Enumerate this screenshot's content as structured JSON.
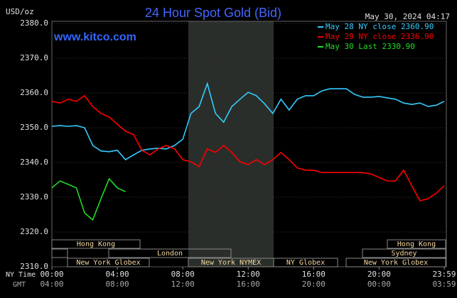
{
  "chart_data": {
    "type": "line",
    "title": "24 Hour Spot Gold (Bid)",
    "annotation": "www.kitco.com",
    "timestamp": "May 30, 2024 04:17",
    "y_label": "USD/oz",
    "x_label": "NY Time",
    "x2_label": "GMT",
    "x": [
      0,
      0.5,
      1,
      1.5,
      2,
      2.5,
      3,
      3.5,
      4,
      4.5,
      5,
      5.5,
      6,
      6.5,
      7,
      7.5,
      8,
      8.5,
      9,
      9.5,
      10,
      10.5,
      11,
      11.5,
      12,
      12.5,
      13,
      13.5,
      14,
      14.5,
      15,
      15.5,
      16,
      16.5,
      17,
      17.5,
      18,
      18.5,
      19,
      19.5,
      20,
      20.5,
      21,
      21.5,
      22,
      22.5,
      23,
      23.5,
      23.98
    ],
    "xlim": [
      0,
      23.98
    ],
    "xticks": [
      {
        "value": 0,
        "label": "00:00"
      },
      {
        "value": 4,
        "label": "04:00"
      },
      {
        "value": 8,
        "label": "08:00"
      },
      {
        "value": 12,
        "label": "12:00"
      },
      {
        "value": 16,
        "label": "16:00"
      },
      {
        "value": 20,
        "label": "20:00"
      },
      {
        "value": 23.98,
        "label": "23:59"
      }
    ],
    "x2tick_labels": [
      "04:00",
      "08:00",
      "12:00",
      "16:00",
      "20:00",
      "00:00",
      "03:59"
    ],
    "ylim": [
      2310,
      2380
    ],
    "yticks": [
      {
        "value": 2310,
        "label": "2310.0"
      },
      {
        "value": 2320,
        "label": "2320.0"
      },
      {
        "value": 2330,
        "label": "2330.0"
      },
      {
        "value": 2340,
        "label": "2340.0"
      },
      {
        "value": 2350,
        "label": "2350.0"
      },
      {
        "value": 2360,
        "label": "2360.0"
      },
      {
        "value": 2370,
        "label": "2370.0"
      },
      {
        "value": 2380,
        "label": "2380.0"
      }
    ],
    "grid": true,
    "legend": "top-right",
    "sessions": [
      "Hong Kong",
      "Hong Kong",
      "London",
      "Sydney",
      "New York Globex",
      "New York NYMEX",
      "NY Globex",
      "New York Globex"
    ],
    "series": [
      {
        "name": "May 28 NY close 2360.90",
        "color": "#33ccff",
        "values": [
          2350.4,
          2350.6,
          2350.4,
          2350.6,
          2350.0,
          2344.9,
          2343.3,
          2343.1,
          2343.5,
          2340.8,
          2342.2,
          2343.5,
          2343.9,
          2344.1,
          2343.9,
          2344.9,
          2346.7,
          2354.1,
          2356.1,
          2362.7,
          2354.1,
          2351.6,
          2356.1,
          2358.2,
          2360.2,
          2359.2,
          2356.9,
          2354.1,
          2358.2,
          2355.1,
          2358.2,
          2359.2,
          2359.2,
          2360.6,
          2361.2,
          2361.2,
          2361.2,
          2359.6,
          2358.8,
          2358.8,
          2359.0,
          2358.6,
          2358.2,
          2357.1,
          2356.7,
          2357.1,
          2356.1,
          2356.5,
          2357.6
        ]
      },
      {
        "name": "May 29 NY close 2336.90",
        "color": "#ff0000",
        "values": [
          2357.6,
          2357.1,
          2358.2,
          2357.6,
          2359.2,
          2356.1,
          2354.1,
          2353.1,
          2351.0,
          2349.0,
          2348.0,
          2343.5,
          2342.2,
          2343.9,
          2344.9,
          2343.9,
          2340.8,
          2340.2,
          2338.8,
          2343.9,
          2342.9,
          2344.9,
          2342.9,
          2340.2,
          2339.4,
          2340.8,
          2339.4,
          2340.8,
          2342.9,
          2340.8,
          2338.4,
          2337.8,
          2337.8,
          2337.1,
          2337.1,
          2337.1,
          2337.1,
          2337.1,
          2337.1,
          2336.7,
          2335.7,
          2334.7,
          2334.7,
          2337.8,
          2333.3,
          2329.0,
          2329.6,
          2331.2,
          2333.3
        ]
      },
      {
        "name": "May 30 Last 2330.90",
        "color": "#22dd22",
        "values": [
          2332.7,
          2334.7,
          2333.7,
          2332.7,
          2325.5,
          2323.5,
          2329.6,
          2335.3,
          2332.7,
          2331.6,
          null,
          null,
          null,
          null,
          null,
          null,
          null,
          null,
          null,
          null,
          null,
          null,
          null,
          null,
          null,
          null,
          null,
          null,
          null,
          null,
          null,
          null,
          null,
          null,
          null,
          null,
          null,
          null,
          null,
          null,
          null,
          null,
          null,
          null,
          null,
          null,
          null,
          null,
          null
        ]
      }
    ]
  }
}
